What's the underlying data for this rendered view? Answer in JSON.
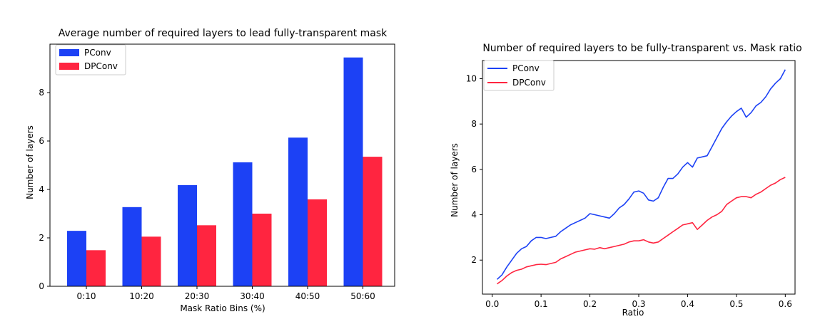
{
  "chart_data": [
    {
      "type": "bar",
      "title": "Average number of required layers to lead fully-transparent mask",
      "xlabel": "Mask Ratio Bins (%)",
      "ylabel": "Number of layers",
      "categories": [
        "0:10",
        "10:20",
        "20:30",
        "30:40",
        "40:50",
        "50:60"
      ],
      "ylim": [
        0,
        10
      ],
      "yticks": [
        0,
        2,
        4,
        6,
        8
      ],
      "series": [
        {
          "name": "PConv",
          "color": "#1c41f5",
          "values": [
            2.29,
            3.27,
            4.18,
            5.12,
            6.14,
            9.45
          ]
        },
        {
          "name": "DPConv",
          "color": "#ff2540",
          "values": [
            1.49,
            2.05,
            2.52,
            3.0,
            3.59,
            5.35
          ]
        }
      ],
      "legend": "top-left",
      "grid": false
    },
    {
      "type": "line",
      "title": "Number of required layers to be fully-transparent vs. Mask ratio",
      "xlabel": "Ratio",
      "ylabel": "Number of layers",
      "xlim": [
        -0.02,
        0.62
      ],
      "ylim": [
        0.5,
        10.8
      ],
      "xticks": [
        0.0,
        0.1,
        0.2,
        0.3,
        0.4,
        0.5,
        0.6
      ],
      "yticks": [
        2,
        4,
        6,
        8,
        10
      ],
      "legend": "top-left",
      "grid": false,
      "series": [
        {
          "name": "PConv",
          "color": "#1c41f5",
          "x": [
            0.01,
            0.02,
            0.03,
            0.04,
            0.05,
            0.06,
            0.07,
            0.08,
            0.09,
            0.1,
            0.11,
            0.12,
            0.13,
            0.14,
            0.15,
            0.16,
            0.17,
            0.18,
            0.19,
            0.2,
            0.21,
            0.22,
            0.23,
            0.24,
            0.25,
            0.26,
            0.27,
            0.28,
            0.29,
            0.3,
            0.31,
            0.32,
            0.33,
            0.34,
            0.35,
            0.36,
            0.37,
            0.38,
            0.39,
            0.4,
            0.41,
            0.42,
            0.43,
            0.44,
            0.45,
            0.46,
            0.47,
            0.48,
            0.49,
            0.5,
            0.51,
            0.52,
            0.53,
            0.54,
            0.55,
            0.56,
            0.57,
            0.58,
            0.59,
            0.6
          ],
          "y": [
            1.15,
            1.35,
            1.7,
            2.0,
            2.3,
            2.5,
            2.6,
            2.85,
            3.0,
            3.0,
            2.95,
            3.0,
            3.05,
            3.25,
            3.4,
            3.55,
            3.65,
            3.75,
            3.85,
            4.05,
            4.0,
            3.95,
            3.9,
            3.85,
            4.05,
            4.3,
            4.45,
            4.7,
            5.0,
            5.05,
            4.95,
            4.65,
            4.6,
            4.75,
            5.2,
            5.6,
            5.6,
            5.8,
            6.1,
            6.3,
            6.1,
            6.5,
            6.55,
            6.6,
            7.0,
            7.4,
            7.8,
            8.1,
            8.35,
            8.55,
            8.7,
            8.3,
            8.5,
            8.8,
            8.95,
            9.2,
            9.55,
            9.8,
            10.0,
            10.4
          ]
        },
        {
          "name": "DPConv",
          "color": "#ff2540",
          "x": [
            0.01,
            0.02,
            0.03,
            0.04,
            0.05,
            0.06,
            0.07,
            0.08,
            0.09,
            0.1,
            0.11,
            0.12,
            0.13,
            0.14,
            0.15,
            0.16,
            0.17,
            0.18,
            0.19,
            0.2,
            0.21,
            0.22,
            0.23,
            0.24,
            0.25,
            0.26,
            0.27,
            0.28,
            0.29,
            0.3,
            0.31,
            0.32,
            0.33,
            0.34,
            0.35,
            0.36,
            0.37,
            0.38,
            0.39,
            0.4,
            0.41,
            0.42,
            0.43,
            0.44,
            0.45,
            0.46,
            0.47,
            0.48,
            0.49,
            0.5,
            0.51,
            0.52,
            0.53,
            0.54,
            0.55,
            0.56,
            0.57,
            0.58,
            0.59,
            0.6
          ],
          "y": [
            0.95,
            1.1,
            1.3,
            1.45,
            1.55,
            1.6,
            1.7,
            1.75,
            1.8,
            1.82,
            1.8,
            1.85,
            1.9,
            2.05,
            2.15,
            2.25,
            2.35,
            2.4,
            2.45,
            2.5,
            2.48,
            2.55,
            2.5,
            2.55,
            2.6,
            2.65,
            2.7,
            2.8,
            2.85,
            2.85,
            2.9,
            2.8,
            2.75,
            2.8,
            2.95,
            3.1,
            3.25,
            3.4,
            3.55,
            3.6,
            3.65,
            3.35,
            3.55,
            3.75,
            3.9,
            4.0,
            4.15,
            4.45,
            4.6,
            4.75,
            4.8,
            4.8,
            4.75,
            4.9,
            5.0,
            5.15,
            5.3,
            5.4,
            5.55,
            5.65
          ]
        }
      ]
    }
  ]
}
